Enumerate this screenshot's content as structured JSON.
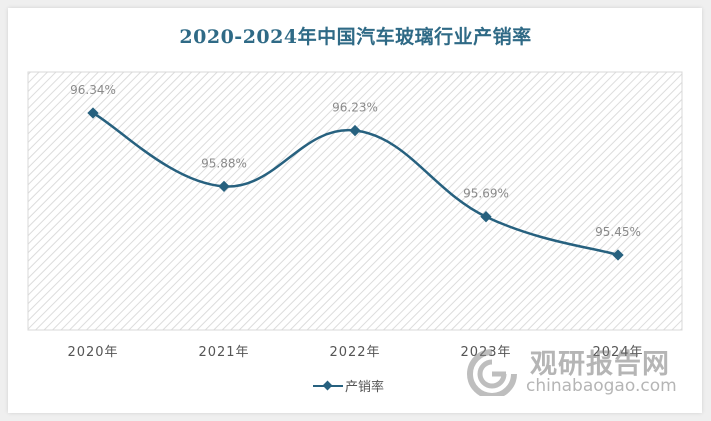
{
  "title": "2020-2024年中国汽车玻璃行业产销率",
  "legend": {
    "label": "产销率"
  },
  "watermark": {
    "cn": "观研报告网",
    "en": "chinabaogao.com"
  },
  "colors": {
    "line": "#27617f",
    "title": "#2f6a86",
    "label": "#8a8a8a",
    "axis_text": "#555555"
  },
  "chart_data": {
    "type": "line",
    "title": "2020-2024年中国汽车玻璃行业产销率",
    "xlabel": "",
    "ylabel": "",
    "categories": [
      "2020年",
      "2021年",
      "2022年",
      "2023年",
      "2024年"
    ],
    "series": [
      {
        "name": "产销率",
        "values": [
          96.34,
          95.88,
          96.23,
          95.69,
          95.45
        ],
        "labels": [
          "96.34%",
          "95.88%",
          "96.23%",
          "95.69%",
          "95.45%"
        ]
      }
    ],
    "ylim": [
      94.5,
      96.7
    ],
    "grid": false,
    "smooth": true,
    "legend_position": "bottom",
    "background": "diagonal-hatch"
  }
}
